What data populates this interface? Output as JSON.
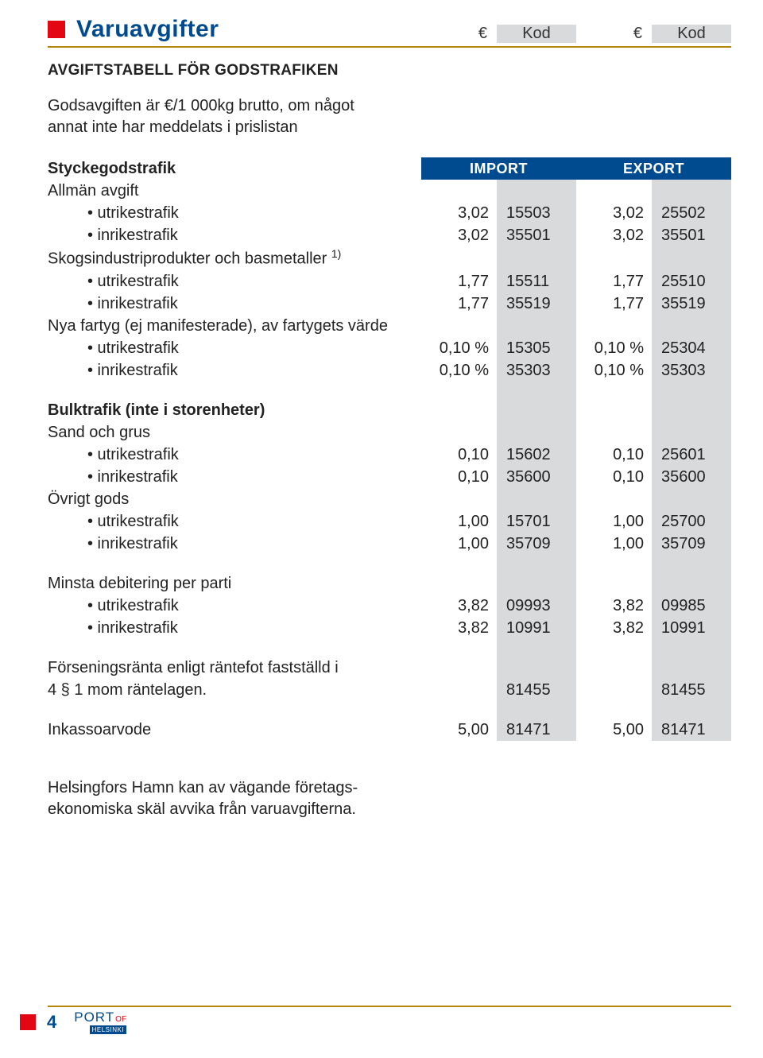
{
  "colors": {
    "accent_blue": "#004b90",
    "accent_red": "#e30613",
    "rule_brown": "#b8860b",
    "kod_bg": "#d9dadb",
    "text": "#222222",
    "white": "#ffffff"
  },
  "typography": {
    "title_fontsize": 30,
    "body_fontsize": 20,
    "subheading_fontsize": 19,
    "banner_fontsize": 18
  },
  "header": {
    "title": "Varuavgifter",
    "euro": "€",
    "kod": "Kod"
  },
  "subheading": "AVGIFTSTABELL FÖR GODSTRAFIKEN",
  "intro_line1": "Godsavgiften är €/1 000kg brutto, om något",
  "intro_line2": "annat inte har meddelats i prislistan",
  "banner": {
    "label": "Styckegodstrafik",
    "import": "IMPORT",
    "export": "EXPORT"
  },
  "rows": [
    {
      "type": "section",
      "label": "Allmän avgift"
    },
    {
      "type": "item",
      "label": "• utrikestrafik",
      "e1": "3,02",
      "k1": "15503",
      "e2": "3,02",
      "k2": "25502"
    },
    {
      "type": "item",
      "label": "• inrikestrafik",
      "e1": "3,02",
      "k1": "35501",
      "e2": "3,02",
      "k2": "35501"
    },
    {
      "type": "section",
      "label": "Skogsindustriprodukter och basmetaller ",
      "sup": "1)"
    },
    {
      "type": "item",
      "label": "• utrikestrafik",
      "e1": "1,77",
      "k1": "15511",
      "e2": "1,77",
      "k2": "25510"
    },
    {
      "type": "item",
      "label": "• inrikestrafik",
      "e1": "1,77",
      "k1": "35519",
      "e2": "1,77",
      "k2": "35519"
    },
    {
      "type": "section",
      "label": "Nya fartyg (ej manifesterade), av fartygets värde"
    },
    {
      "type": "item",
      "label": "• utrikestrafik",
      "e1": "0,10 %",
      "k1": "15305",
      "e2": "0,10 %",
      "k2": "25304"
    },
    {
      "type": "item",
      "label": "• inrikestrafik",
      "e1": "0,10 %",
      "k1": "35303",
      "e2": "0,10 %",
      "k2": "35303"
    },
    {
      "type": "spacer"
    },
    {
      "type": "sectionbold",
      "label": "Bulktrafik (inte i storenheter)"
    },
    {
      "type": "section",
      "label": "Sand och grus"
    },
    {
      "type": "item",
      "label": "• utrikestrafik",
      "e1": "0,10",
      "k1": "15602",
      "e2": "0,10",
      "k2": "25601"
    },
    {
      "type": "item",
      "label": "• inrikestrafik",
      "e1": "0,10",
      "k1": "35600",
      "e2": "0,10",
      "k2": "35600"
    },
    {
      "type": "section",
      "label": "Övrigt gods"
    },
    {
      "type": "item",
      "label": "• utrikestrafik",
      "e1": "1,00",
      "k1": "15701",
      "e2": "1,00",
      "k2": "25700"
    },
    {
      "type": "item",
      "label": "• inrikestrafik",
      "e1": "1,00",
      "k1": "35709",
      "e2": "1,00",
      "k2": "35709"
    },
    {
      "type": "spacer"
    },
    {
      "type": "section",
      "label": "Minsta debitering per parti"
    },
    {
      "type": "item",
      "label": "• utrikestrafik",
      "e1": "3,82",
      "k1": "09993",
      "e2": "3,82",
      "k2": "09985"
    },
    {
      "type": "item",
      "label": "• inrikestrafik",
      "e1": "3,82",
      "k1": "10991",
      "e2": "3,82",
      "k2": "10991"
    },
    {
      "type": "spacer"
    },
    {
      "type": "section",
      "label": "Förseningsränta enligt räntefot fastställd i"
    },
    {
      "type": "plain",
      "label": "4 § 1 mom räntelagen.",
      "e1": "",
      "k1": "81455",
      "e2": "",
      "k2": "81455"
    },
    {
      "type": "spacer"
    },
    {
      "type": "plain",
      "label": "Inkassoarvode",
      "e1": "5,00",
      "k1": "81471",
      "e2": "5,00",
      "k2": "81471"
    }
  ],
  "footnote_line1": "Helsingfors Hamn kan av vägande företags-",
  "footnote_line2": "ekonomiska skäl avvika från varuavgifterna.",
  "footer": {
    "page": "4",
    "logo_port": "PORT",
    "logo_of": "OF",
    "logo_hel": "HELSINKI"
  }
}
